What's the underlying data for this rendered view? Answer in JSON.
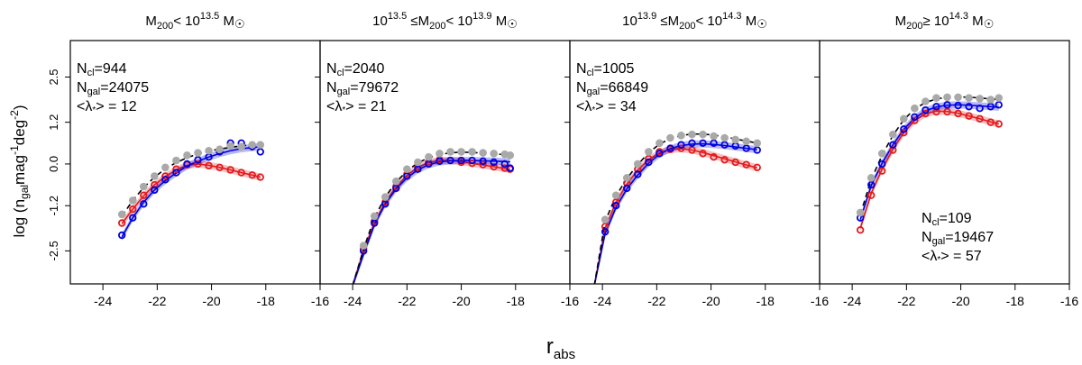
{
  "figure": {
    "ylabel_main": "log (n",
    "ylabel_sub1": "gal",
    "ylabel_mid": "mag",
    "ylabel_sup1": "-1",
    "ylabel_mid2": "deg",
    "ylabel_sup2": "-2",
    "ylabel_end": ")",
    "xlabel_main": "r",
    "xlabel_sub": "abs"
  },
  "chart_data": [
    {
      "type": "scatter",
      "title_parts": {
        "pre": "M",
        "sub": "200",
        "mid": "< 10",
        "sup": "13.5",
        "post": " M",
        "sun": "☉"
      },
      "xlim": [
        -25.2,
        -16
      ],
      "ylim": [
        -3.45,
        3.55
      ],
      "xticks": [
        -24,
        -22,
        -20,
        -18,
        -16
      ],
      "yticks": [
        -2.5,
        -1.2,
        0.0,
        1.2,
        2.5
      ],
      "ytick_labels": [
        "-2.5",
        "-1.2",
        "0.0",
        "1.2",
        "2.5"
      ],
      "annotation": {
        "ncl": "944",
        "ngal": "24075",
        "lambda": "12"
      },
      "series": [
        {
          "name": "red",
          "color": "#e41a1c",
          "x": [
            -23.3,
            -22.9,
            -22.5,
            -22.1,
            -21.7,
            -21.3,
            -20.9,
            -20.5,
            -20.1,
            -19.7,
            -19.3,
            -18.9,
            -18.5,
            -18.2
          ],
          "y": [
            -1.7,
            -1.3,
            -0.9,
            -0.6,
            -0.35,
            -0.15,
            -0.02,
            0.0,
            -0.05,
            -0.1,
            -0.17,
            -0.25,
            -0.32,
            -0.38
          ],
          "fit_y": [
            -1.72,
            -1.3,
            -0.92,
            -0.6,
            -0.36,
            -0.17,
            -0.04,
            0.0,
            -0.04,
            -0.1,
            -0.17,
            -0.25,
            -0.32,
            -0.38
          ]
        },
        {
          "name": "blue",
          "color": "#0000e0",
          "x": [
            -23.3,
            -22.9,
            -22.5,
            -22.1,
            -21.7,
            -21.3,
            -20.9,
            -20.5,
            -20.1,
            -19.7,
            -19.3,
            -18.9,
            -18.5,
            -18.2
          ],
          "y": [
            -2.05,
            -1.55,
            -1.15,
            -0.75,
            -0.45,
            -0.25,
            0.0,
            0.12,
            0.2,
            0.35,
            0.6,
            0.6,
            0.5,
            0.35
          ],
          "fit_y": [
            -2.1,
            -1.55,
            -1.1,
            -0.75,
            -0.48,
            -0.26,
            -0.06,
            0.08,
            0.2,
            0.3,
            0.38,
            0.44,
            0.47,
            0.5
          ]
        },
        {
          "name": "grey",
          "color": "#a9a9a9",
          "x": [
            -23.3,
            -22.9,
            -22.5,
            -22.1,
            -21.7,
            -21.3,
            -20.9,
            -20.5,
            -20.1,
            -19.7,
            -19.3,
            -18.9,
            -18.5,
            -18.2
          ],
          "y": [
            -1.45,
            -1.05,
            -0.65,
            -0.35,
            -0.1,
            0.1,
            0.25,
            0.32,
            0.38,
            0.42,
            0.52,
            0.5,
            0.55,
            0.55
          ],
          "fit_y": [
            -1.5,
            -1.05,
            -0.68,
            -0.38,
            -0.14,
            0.04,
            0.18,
            0.29,
            0.37,
            0.43,
            0.48,
            0.52,
            0.55,
            0.57
          ]
        }
      ]
    },
    {
      "type": "scatter",
      "title_parts": {
        "pre": "10",
        "sup0": "13.5",
        "mid0": " ≤M",
        "sub": "200",
        "mid": "< 10",
        "sup": "13.9",
        "post": " M",
        "sun": "☉"
      },
      "xlim": [
        -25.2,
        -16
      ],
      "ylim": [
        -3.45,
        3.55
      ],
      "xticks": [
        -24,
        -22,
        -20,
        -18,
        -16
      ],
      "yticks": [
        -2.5,
        -1.2,
        0.0,
        1.2,
        2.5
      ],
      "annotation": {
        "ncl": "2040",
        "ngal": "79672",
        "lambda": "21"
      },
      "series": [
        {
          "name": "red",
          "color": "#e41a1c",
          "x": [
            -23.6,
            -23.2,
            -22.8,
            -22.4,
            -22.0,
            -21.6,
            -21.2,
            -20.8,
            -20.4,
            -20.0,
            -19.6,
            -19.2,
            -18.8,
            -18.4,
            -18.2
          ],
          "y": [
            -2.45,
            -1.65,
            -1.1,
            -0.65,
            -0.3,
            -0.1,
            0.05,
            0.12,
            0.1,
            0.05,
            0.02,
            -0.02,
            -0.08,
            -0.12,
            -0.15
          ],
          "fit_y": [
            -2.5,
            -1.7,
            -1.1,
            -0.66,
            -0.33,
            -0.1,
            0.04,
            0.1,
            0.1,
            0.07,
            0.02,
            -0.03,
            -0.08,
            -0.13,
            -0.16
          ]
        },
        {
          "name": "blue",
          "color": "#0000e0",
          "x": [
            -23.6,
            -23.2,
            -22.8,
            -22.4,
            -22.0,
            -21.6,
            -21.2,
            -20.8,
            -20.4,
            -20.0,
            -19.6,
            -19.2,
            -18.8,
            -18.4,
            -18.2
          ],
          "y": [
            -2.5,
            -1.7,
            -1.15,
            -0.7,
            -0.35,
            -0.15,
            0.0,
            0.08,
            0.1,
            0.1,
            0.1,
            0.08,
            0.05,
            0.0,
            -0.12
          ],
          "fit_y": [
            -2.6,
            -1.75,
            -1.15,
            -0.72,
            -0.4,
            -0.17,
            -0.02,
            0.06,
            0.09,
            0.1,
            0.1,
            0.09,
            0.08,
            0.07,
            0.06
          ]
        },
        {
          "name": "grey",
          "color": "#a9a9a9",
          "x": [
            -23.6,
            -23.2,
            -22.8,
            -22.4,
            -22.0,
            -21.6,
            -21.2,
            -20.8,
            -20.4,
            -20.0,
            -19.6,
            -19.2,
            -18.8,
            -18.4,
            -18.2
          ],
          "y": [
            -2.35,
            -1.5,
            -0.95,
            -0.5,
            -0.15,
            0.05,
            0.2,
            0.3,
            0.35,
            0.35,
            0.35,
            0.32,
            0.3,
            0.28,
            0.25
          ],
          "fit_y": [
            -2.45,
            -1.55,
            -0.95,
            -0.52,
            -0.2,
            0.03,
            0.18,
            0.27,
            0.32,
            0.34,
            0.33,
            0.31,
            0.29,
            0.27,
            0.26
          ]
        }
      ],
      "curve_start": {
        "x": -24.0,
        "y": -3.5
      }
    },
    {
      "type": "scatter",
      "title_parts": {
        "pre": "10",
        "sup0": "13.9",
        "mid0": " ≤M",
        "sub": "200",
        "mid": "< 10",
        "sup": "14.3",
        "post": " M",
        "sun": "☉"
      },
      "xlim": [
        -25.2,
        -16
      ],
      "ylim": [
        -3.45,
        3.55
      ],
      "xticks": [
        -24,
        -22,
        -20,
        -18,
        -16
      ],
      "yticks": [
        -2.5,
        -1.2,
        0.0,
        1.2,
        2.5
      ],
      "annotation": {
        "ncl": "1005",
        "ngal": "66849",
        "lambda": "34"
      },
      "series": [
        {
          "name": "red",
          "color": "#e41a1c",
          "x": [
            -23.9,
            -23.5,
            -23.1,
            -22.7,
            -22.3,
            -21.9,
            -21.5,
            -21.1,
            -20.7,
            -20.3,
            -19.9,
            -19.5,
            -19.1,
            -18.7,
            -18.3
          ],
          "y": [
            -1.8,
            -1.1,
            -0.55,
            -0.15,
            0.15,
            0.35,
            0.42,
            0.45,
            0.4,
            0.3,
            0.2,
            0.12,
            0.05,
            -0.02,
            -0.1
          ],
          "fit_y": [
            -1.85,
            -1.1,
            -0.58,
            -0.17,
            0.12,
            0.32,
            0.42,
            0.44,
            0.4,
            0.33,
            0.24,
            0.15,
            0.06,
            -0.03,
            -0.11
          ]
        },
        {
          "name": "blue",
          "color": "#0000e0",
          "x": [
            -23.9,
            -23.5,
            -23.1,
            -22.7,
            -22.3,
            -21.9,
            -21.5,
            -21.1,
            -20.7,
            -20.3,
            -19.9,
            -19.5,
            -19.1,
            -18.7,
            -18.3
          ],
          "y": [
            -1.95,
            -1.2,
            -0.7,
            -0.3,
            0.05,
            0.3,
            0.45,
            0.55,
            0.6,
            0.6,
            0.6,
            0.55,
            0.52,
            0.45,
            0.4
          ],
          "fit_y": [
            -2.0,
            -1.25,
            -0.72,
            -0.32,
            0.02,
            0.28,
            0.44,
            0.53,
            0.57,
            0.58,
            0.56,
            0.53,
            0.49,
            0.45,
            0.41
          ]
        },
        {
          "name": "grey",
          "color": "#a9a9a9",
          "x": [
            -23.9,
            -23.5,
            -23.1,
            -22.7,
            -22.3,
            -21.9,
            -21.5,
            -21.1,
            -20.7,
            -20.3,
            -19.9,
            -19.5,
            -19.1,
            -18.7,
            -18.3
          ],
          "y": [
            -1.6,
            -0.9,
            -0.4,
            0.0,
            0.35,
            0.6,
            0.75,
            0.82,
            0.85,
            0.85,
            0.8,
            0.75,
            0.7,
            0.65,
            0.6
          ],
          "fit_y": [
            -1.65,
            -0.92,
            -0.42,
            -0.02,
            0.32,
            0.57,
            0.73,
            0.82,
            0.86,
            0.86,
            0.83,
            0.78,
            0.72,
            0.66,
            0.6
          ]
        }
      ],
      "curve_start": {
        "x": -24.3,
        "y": -3.5
      }
    },
    {
      "type": "scatter",
      "title_parts": {
        "pre": "M",
        "sub": "200",
        "mid": "≥ 10",
        "sup": "14.3",
        "post": " M",
        "sun": "☉"
      },
      "xlim": [
        -25.2,
        -16
      ],
      "ylim": [
        -3.45,
        3.55
      ],
      "xticks": [
        -24,
        -22,
        -20,
        -18,
        -16
      ],
      "yticks": [
        -2.5,
        -1.2,
        0.0,
        1.2,
        2.5
      ],
      "annotation": {
        "ncl": "109",
        "ngal": "19467",
        "lambda": "57"
      },
      "series": [
        {
          "name": "red",
          "color": "#e41a1c",
          "x": [
            -23.7,
            -23.3,
            -22.9,
            -22.5,
            -22.1,
            -21.7,
            -21.3,
            -20.9,
            -20.5,
            -20.1,
            -19.7,
            -19.3,
            -18.9,
            -18.6
          ],
          "y": [
            -1.9,
            -0.9,
            -0.2,
            0.4,
            0.9,
            1.25,
            1.45,
            1.5,
            1.5,
            1.45,
            1.38,
            1.3,
            1.2,
            1.15
          ],
          "fit_y": [
            -1.85,
            -0.85,
            -0.15,
            0.42,
            0.9,
            1.25,
            1.44,
            1.52,
            1.51,
            1.46,
            1.38,
            1.3,
            1.21,
            1.15
          ]
        },
        {
          "name": "blue",
          "color": "#0000e0",
          "x": [
            -23.7,
            -23.3,
            -22.9,
            -22.5,
            -22.1,
            -21.7,
            -21.3,
            -20.9,
            -20.5,
            -20.1,
            -19.7,
            -19.3,
            -18.9,
            -18.6
          ],
          "y": [
            -1.55,
            -0.6,
            0.0,
            0.55,
            1.0,
            1.35,
            1.55,
            1.65,
            1.7,
            1.68,
            1.65,
            1.6,
            1.65,
            1.7
          ],
          "fit_y": [
            -1.6,
            -0.62,
            0.02,
            0.55,
            1.0,
            1.32,
            1.53,
            1.64,
            1.69,
            1.7,
            1.69,
            1.67,
            1.65,
            1.63
          ]
        },
        {
          "name": "grey",
          "color": "#a9a9a9",
          "x": [
            -23.7,
            -23.3,
            -22.9,
            -22.5,
            -22.1,
            -21.7,
            -21.3,
            -20.9,
            -20.5,
            -20.1,
            -19.7,
            -19.3,
            -18.9,
            -18.6
          ],
          "y": [
            -1.4,
            -0.4,
            0.3,
            0.85,
            1.3,
            1.6,
            1.8,
            1.9,
            1.92,
            1.92,
            1.9,
            1.88,
            1.85,
            1.9
          ],
          "fit_y": [
            -1.45,
            -0.45,
            0.25,
            0.82,
            1.27,
            1.58,
            1.77,
            1.87,
            1.92,
            1.93,
            1.92,
            1.9,
            1.87,
            1.85
          ]
        }
      ]
    }
  ]
}
